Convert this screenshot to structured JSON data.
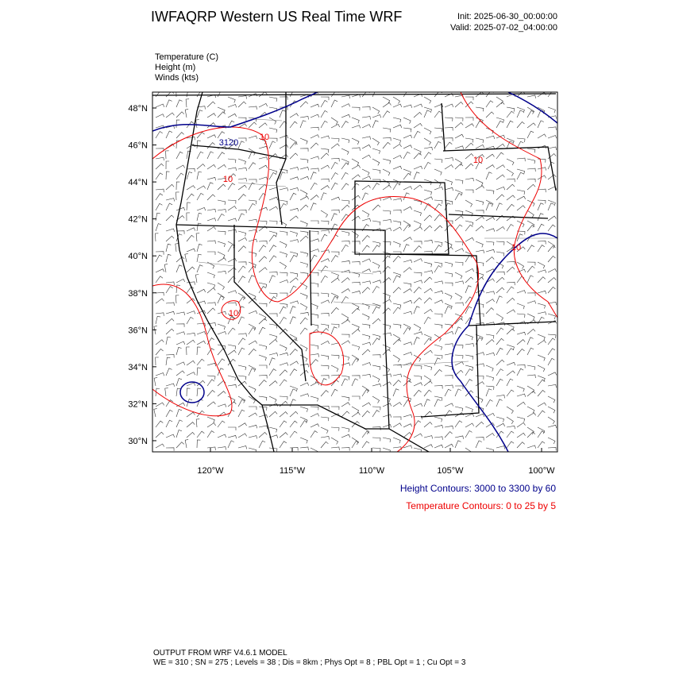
{
  "header": {
    "title": "IWFAQRP Western US Real Time WRF",
    "init": "Init: 2025-06-30_00:00:00",
    "valid": "Valid: 2025-07-02_04:00:00"
  },
  "fields": [
    "Temperature   (C)",
    "Height   (m)",
    "Winds   (kts)"
  ],
  "map": {
    "lat_labels": [
      "48°N",
      "46°N",
      "44°N",
      "42°N",
      "40°N",
      "38°N",
      "36°N",
      "34°N",
      "32°N",
      "30°N"
    ],
    "lon_labels": [
      "120°W",
      "115°W",
      "110°W",
      "105°W",
      "100°W"
    ],
    "contour_labels": [
      "3120",
      "10",
      "10",
      "10",
      "10",
      "10"
    ]
  },
  "legend": {
    "height": "Height Contours: 3000 to 3300 by 60",
    "temperature": "Temperature Contours: 0 to 25 by 5"
  },
  "footer": {
    "line1": "OUTPUT FROM WRF V4.6.1 MODEL",
    "line2": "WE = 310 ; SN = 275 ; Levels = 38 ; Dis = 8km ; Phys Opt = 8 ; PBL Opt = 1 ; Cu Opt = 3"
  }
}
